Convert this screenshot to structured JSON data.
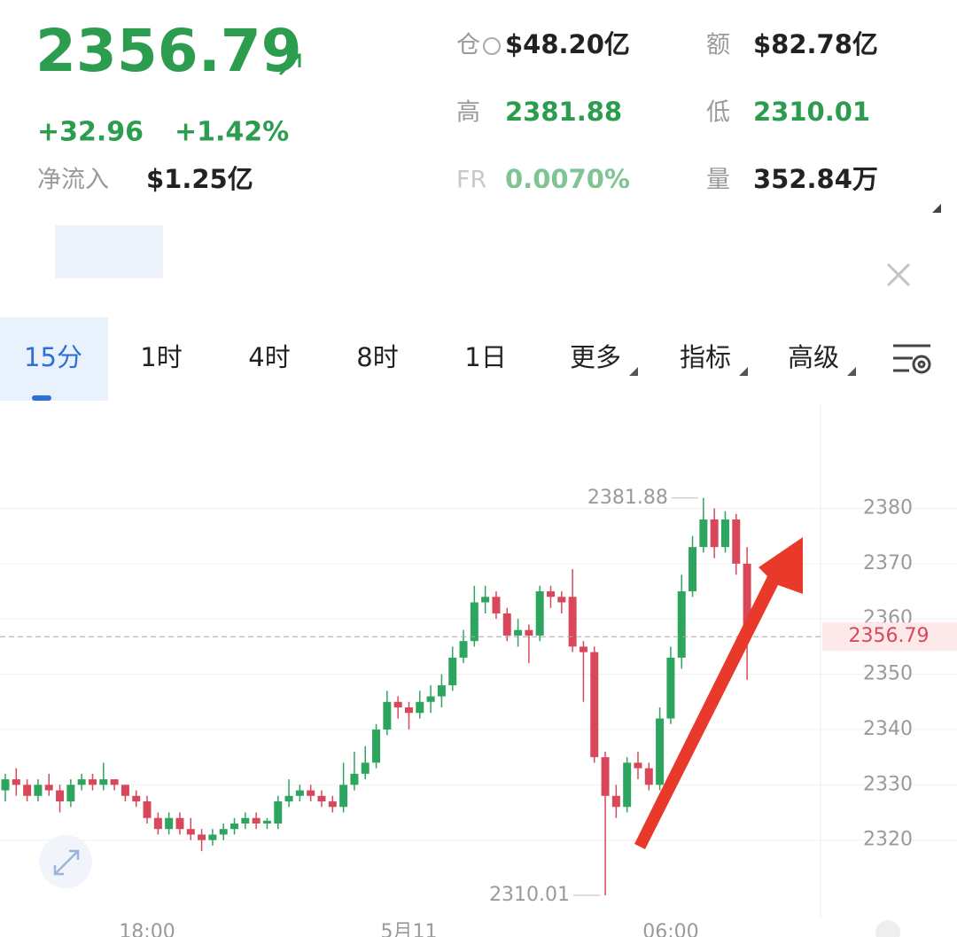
{
  "header": {
    "price": "2356.79",
    "change": "+32.96",
    "change_pct": "+1.42%",
    "net_inflow_label": "净流入",
    "net_inflow": "$1.25亿",
    "stats": [
      {
        "label": "仓",
        "value": "$48.20亿"
      },
      {
        "label": "额",
        "value": "$82.78亿"
      },
      {
        "label": "高",
        "value": "2381.88"
      },
      {
        "label": "低",
        "value": "2310.01"
      },
      {
        "label": "FR",
        "value": "0.0070%"
      },
      {
        "label": "量",
        "value": "352.84万"
      }
    ]
  },
  "tabs": [
    "15分",
    "1时",
    "4时",
    "8时",
    "1日",
    "更多",
    "指标",
    "高级"
  ],
  "chart_data": {
    "type": "candlestick",
    "categories": [
      null,
      null,
      null,
      null,
      null,
      null,
      null,
      null,
      null,
      null,
      null,
      null,
      null,
      "18:00",
      null,
      null,
      null,
      null,
      null,
      null,
      null,
      null,
      null,
      null,
      null,
      null,
      null,
      null,
      null,
      null,
      null,
      null,
      null,
      null,
      null,
      null,
      null,
      "5月11",
      null,
      null,
      null,
      null,
      null,
      null,
      null,
      null,
      null,
      null,
      null,
      null,
      null,
      null,
      null,
      null,
      null,
      null,
      null,
      null,
      null,
      null,
      null,
      "06:00",
      null,
      null,
      null,
      null,
      null,
      null,
      null
    ],
    "open": [
      2329,
      2331,
      2330,
      2328,
      2330,
      2329,
      2327,
      2330,
      2331,
      2330,
      2331,
      2330,
      2328,
      2327,
      2324,
      2322,
      2324,
      2322,
      2321,
      2320,
      2321,
      2322,
      2323,
      2324,
      2323,
      2323,
      2327,
      2328,
      2329,
      2328,
      2327,
      2326,
      2330,
      2332,
      2334,
      2340,
      2345,
      2344,
      2343,
      2345,
      2346,
      2348,
      2353,
      2356,
      2363,
      2364,
      2361,
      2357,
      2358,
      2357,
      2365,
      2364,
      2364,
      2355,
      2354,
      2335,
      2328,
      2326,
      2334,
      2333,
      2330,
      2342,
      2353,
      2365,
      2373,
      2378,
      2373,
      2378,
      2370
    ],
    "high": [
      2332,
      2333,
      2331,
      2331,
      2332,
      2330,
      2331,
      2332,
      2332,
      2334,
      2331,
      2330,
      2329,
      2328,
      2325,
      2325,
      2325,
      2324,
      2322,
      2322,
      2323,
      2324,
      2325,
      2325,
      2324,
      2328,
      2331,
      2330,
      2330,
      2329,
      2328,
      2334,
      2336,
      2337,
      2341,
      2347,
      2346,
      2345,
      2347,
      2348,
      2350,
      2355,
      2358,
      2366,
      2366,
      2365,
      2362,
      2360,
      2359,
      2366,
      2366,
      2365,
      2369,
      2356,
      2355,
      2336,
      2330,
      2335,
      2336,
      2334,
      2344,
      2355,
      2368,
      2375,
      2381.88,
      2380,
      2379.5,
      2379,
      2373
    ],
    "low": [
      2327,
      2328,
      2327,
      2327,
      2328,
      2325,
      2326,
      2329,
      2329,
      2329,
      2329,
      2327,
      2326,
      2323,
      2321,
      2321,
      2321,
      2320,
      2318,
      2319,
      2320,
      2321,
      2322,
      2322,
      2322,
      2322,
      2326,
      2327,
      2327,
      2326,
      2325,
      2325,
      2329,
      2331,
      2333,
      2339,
      2342,
      2340,
      2342,
      2343,
      2344,
      2347,
      2352,
      2355,
      2361,
      2360,
      2356,
      2355,
      2352,
      2356,
      2362,
      2361,
      2354,
      2345,
      2334,
      2310.01,
      2324,
      2325,
      2331,
      2329,
      2329,
      2341,
      2351,
      2364,
      2372,
      2371,
      2372,
      2368,
      2349
    ],
    "close": [
      2331,
      2330,
      2328,
      2330,
      2329,
      2327,
      2330,
      2331,
      2330,
      2331,
      2330,
      2328,
      2327,
      2324,
      2322,
      2324,
      2322,
      2321,
      2320,
      2321,
      2322,
      2323,
      2324,
      2323,
      2323.5,
      2327,
      2328,
      2329,
      2328,
      2327,
      2326,
      2330,
      2332,
      2334,
      2340,
      2345,
      2344,
      2343,
      2345,
      2346,
      2348,
      2353,
      2356,
      2363,
      2364,
      2361,
      2357,
      2358,
      2357,
      2365,
      2364,
      2363,
      2355,
      2354,
      2335,
      2328,
      2326,
      2334,
      2333,
      2330,
      2342,
      2353,
      2365,
      2373,
      2378,
      2373,
      2378,
      2370,
      2356.79
    ],
    "ylim": [
      2306,
      2399
    ],
    "yticks": [
      2320,
      2330,
      2340,
      2350,
      2360,
      2370,
      2380
    ],
    "grid": true,
    "up_color": "#2ea55e",
    "down_color": "#d9485a"
  }
}
